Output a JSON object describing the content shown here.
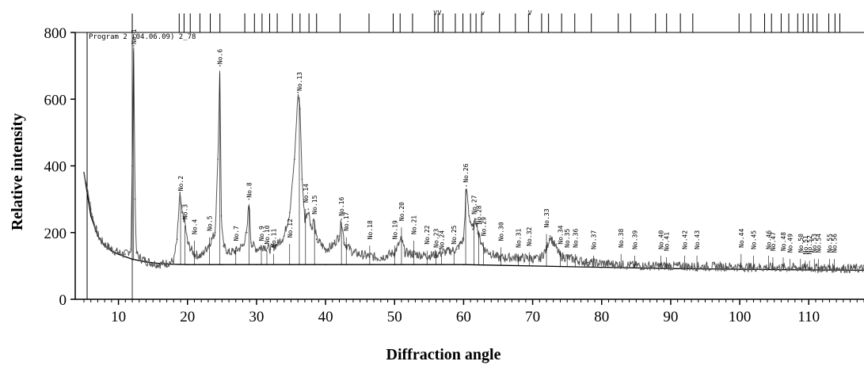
{
  "chart_data": {
    "type": "line",
    "title": "",
    "program_label": "Program 2 (04.06.09) 2_78",
    "xlabel": "Diffraction angle",
    "ylabel": "Relative intensity",
    "xlim": [
      5,
      118
    ],
    "ylim": [
      0,
      800
    ],
    "x_ticks": [
      10,
      20,
      30,
      40,
      50,
      60,
      70,
      80,
      90,
      100,
      110
    ],
    "y_ticks": [
      0,
      200,
      400,
      600,
      800
    ],
    "x_minor_step": 1,
    "grid": false,
    "series": [
      {
        "role": "measured",
        "color": "#555555",
        "x": [
          5.0,
          5.5,
          6.0,
          6.5,
          7.0,
          7.5,
          8.0,
          9.0,
          10.0,
          11.0,
          11.8,
          12.0,
          12.2,
          12.4,
          12.6,
          13.0,
          14.0,
          15.0,
          16.0,
          17.0,
          18.0,
          18.5,
          18.9,
          19.2,
          19.6,
          20.0,
          20.5,
          21.0,
          22.0,
          23.0,
          24.0,
          24.4,
          24.7,
          24.9,
          25.2,
          26.0,
          27.0,
          28.0,
          28.6,
          28.9,
          29.2,
          30.0,
          31.0,
          32.0,
          33.0,
          34.0,
          34.8,
          35.5,
          36.0,
          36.3,
          36.6,
          37.0,
          37.5,
          38.0,
          38.3,
          38.7,
          40.0,
          41.0,
          42.0,
          42.3,
          42.7,
          44.0,
          46.0,
          48.0,
          50.0,
          51.0,
          51.5,
          53.0,
          55.0,
          57.0,
          59.0,
          60.0,
          60.4,
          60.8,
          61.3,
          61.8,
          62.2,
          63.0,
          65.0,
          68.0,
          71.0,
          72.0,
          72.5,
          74.0,
          78.0,
          82.0,
          86.0,
          90.0,
          94.0,
          98.0,
          102.0,
          106.0,
          110.0,
          114.0,
          118.0
        ],
        "y": [
          380,
          330,
          270,
          225,
          195,
          175,
          165,
          150,
          140,
          135,
          150,
          400,
          760,
          300,
          140,
          125,
          115,
          108,
          105,
          108,
          115,
          180,
          320,
          260,
          235,
          170,
          150,
          135,
          130,
          160,
          200,
          420,
          700,
          250,
          160,
          140,
          145,
          160,
          200,
          300,
          170,
          150,
          160,
          150,
          165,
          190,
          260,
          420,
          620,
          570,
          360,
          240,
          270,
          210,
          240,
          180,
          150,
          160,
          190,
          240,
          170,
          140,
          130,
          125,
          140,
          180,
          140,
          135,
          130,
          140,
          150,
          180,
          340,
          250,
          210,
          240,
          190,
          150,
          125,
          125,
          120,
          150,
          190,
          130,
          110,
          105,
          100,
          100,
          98,
          98,
          96,
          95,
          94,
          93,
          92
        ]
      },
      {
        "role": "background",
        "color": "#000000",
        "x": [
          5.0,
          6.0,
          7.0,
          8.0,
          9.0,
          10.0,
          12.0,
          14.0,
          16.0,
          18.0,
          20.0,
          25.0,
          30.0,
          40.0,
          50.0,
          60.0,
          70.0,
          80.0,
          90.0,
          100.0,
          110.0,
          118.0
        ],
        "y": [
          380,
          250,
          190,
          160,
          145,
          135,
          120,
          112,
          107,
          105,
          104,
          104,
          104,
          104,
          104,
          104,
          100,
          96,
          92,
          90,
          88,
          87
        ]
      }
    ],
    "peak_labels": [
      {
        "label": "No.1",
        "x": 12.2,
        "y": 760
      },
      {
        "label": "No.2",
        "x": 19.0,
        "y": 320
      },
      {
        "label": "No.3",
        "x": 19.6,
        "y": 235
      },
      {
        "label": "No.4",
        "x": 21.0,
        "y": 190
      },
      {
        "label": "No.5",
        "x": 23.2,
        "y": 200
      },
      {
        "label": "No.6",
        "x": 24.7,
        "y": 700
      },
      {
        "label": "No.7",
        "x": 27.0,
        "y": 170
      },
      {
        "label": "No.8",
        "x": 28.9,
        "y": 300
      },
      {
        "label": "No.9",
        "x": 30.7,
        "y": 170
      },
      {
        "label": "No.10",
        "x": 31.5,
        "y": 160
      },
      {
        "label": "No.11",
        "x": 32.5,
        "y": 150
      },
      {
        "label": "No.12",
        "x": 34.8,
        "y": 180
      },
      {
        "label": "No.13",
        "x": 36.2,
        "y": 620
      },
      {
        "label": "No.14",
        "x": 37.1,
        "y": 285
      },
      {
        "label": "No.15",
        "x": 38.4,
        "y": 250
      },
      {
        "label": "No.16",
        "x": 42.3,
        "y": 245
      },
      {
        "label": "No.17",
        "x": 43.0,
        "y": 200
      },
      {
        "label": "No.18",
        "x": 46.4,
        "y": 175
      },
      {
        "label": "No.19",
        "x": 50.0,
        "y": 175
      },
      {
        "label": "No.20",
        "x": 51.0,
        "y": 230
      },
      {
        "label": "No.21",
        "x": 52.8,
        "y": 190
      },
      {
        "label": "No.22",
        "x": 54.7,
        "y": 160
      },
      {
        "label": "No.23",
        "x": 56.0,
        "y": 150
      },
      {
        "label": "No.24",
        "x": 56.8,
        "y": 145
      },
      {
        "label": "No.25",
        "x": 58.6,
        "y": 160
      },
      {
        "label": "No.26",
        "x": 60.3,
        "y": 345
      },
      {
        "label": "No.27",
        "x": 61.5,
        "y": 250
      },
      {
        "label": "No.28",
        "x": 62.2,
        "y": 220
      },
      {
        "label": "No.29",
        "x": 62.9,
        "y": 185
      },
      {
        "label": "No.30",
        "x": 65.4,
        "y": 170
      },
      {
        "label": "No.31",
        "x": 67.9,
        "y": 150
      },
      {
        "label": "No.32",
        "x": 69.5,
        "y": 155
      },
      {
        "label": "No.33",
        "x": 72.0,
        "y": 210
      },
      {
        "label": "No.34",
        "x": 74.0,
        "y": 160
      },
      {
        "label": "No.35",
        "x": 75.0,
        "y": 150
      },
      {
        "label": "No.36",
        "x": 76.2,
        "y": 150
      },
      {
        "label": "No.37",
        "x": 78.8,
        "y": 145
      },
      {
        "label": "No.38",
        "x": 82.8,
        "y": 150
      },
      {
        "label": "No.39",
        "x": 84.8,
        "y": 145
      },
      {
        "label": "No.40",
        "x": 88.6,
        "y": 145
      },
      {
        "label": "No.41",
        "x": 89.4,
        "y": 140
      },
      {
        "label": "No.42",
        "x": 92.0,
        "y": 145
      },
      {
        "label": "No.43",
        "x": 93.8,
        "y": 145
      },
      {
        "label": "No.44",
        "x": 100.2,
        "y": 150
      },
      {
        "label": "No.45",
        "x": 102.0,
        "y": 145
      },
      {
        "label": "No.46",
        "x": 104.2,
        "y": 145
      },
      {
        "label": "No.47",
        "x": 104.8,
        "y": 140
      },
      {
        "label": "No.48",
        "x": 106.3,
        "y": 140
      },
      {
        "label": "No.49",
        "x": 107.3,
        "y": 135
      },
      {
        "label": "No.50",
        "x": 108.8,
        "y": 135
      },
      {
        "label": "No.51",
        "x": 109.5,
        "y": 130
      },
      {
        "label": "No.52",
        "x": 110.1,
        "y": 130
      },
      {
        "label": "No.53",
        "x": 110.8,
        "y": 135
      },
      {
        "label": "No.54",
        "x": 111.4,
        "y": 135
      },
      {
        "label": "No.55",
        "x": 113.0,
        "y": 135
      },
      {
        "label": "No.56",
        "x": 113.7,
        "y": 135
      }
    ],
    "reference_ticks": [
      12.0,
      18.8,
      19.5,
      20.4,
      21.8,
      23.3,
      24.7,
      28.3,
      29.7,
      30.8,
      31.9,
      33.0,
      35.2,
      36.3,
      37.6,
      38.7,
      42.1,
      46.3,
      49.8,
      50.8,
      52.6,
      55.8,
      56.3,
      57.0,
      58.8,
      59.9,
      61.0,
      61.8,
      62.6,
      65.2,
      67.5,
      69.4,
      71.3,
      72.3,
      74.2,
      76.1,
      78.5,
      82.4,
      84.2,
      87.8,
      89.4,
      91.4,
      93.2,
      99.9,
      101.6,
      103.6,
      104.6,
      106.0,
      107.1,
      108.4,
      109.2,
      109.9,
      110.6,
      111.2,
      112.9,
      113.8,
      114.5
    ],
    "reference_markers": [
      {
        "label": "V",
        "x": 55.9
      },
      {
        "label": "V",
        "x": 56.5
      },
      {
        "label": "v",
        "x": 62.8
      },
      {
        "label": "V",
        "x": 69.6
      }
    ]
  }
}
